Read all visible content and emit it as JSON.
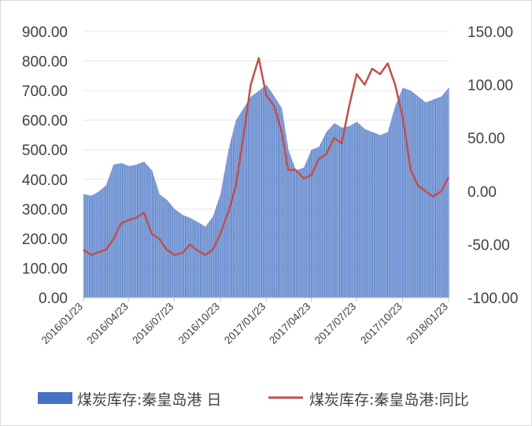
{
  "chart_data": {
    "type": "bar+line",
    "title": "",
    "x_ticks": [
      "2016/01/23",
      "2016/04/23",
      "2016/07/23",
      "2016/10/23",
      "2017/01/23",
      "2017/04/23",
      "2017/07/23",
      "2017/10/23",
      "2018/01/23"
    ],
    "y_left": {
      "ylim": [
        0,
        900
      ],
      "ticks": [
        "0.00",
        "100.00",
        "200.00",
        "300.00",
        "400.00",
        "500.00",
        "600.00",
        "700.00",
        "800.00",
        "900.00"
      ]
    },
    "y_right": {
      "ylim": [
        -100,
        150
      ],
      "ticks": [
        "-100.00",
        "-50.00",
        "0.00",
        "50.00",
        "100.00",
        "150.00"
      ]
    },
    "series": [
      {
        "name": "煤炭库存:秦皇岛港 日",
        "kind": "bar",
        "axis": "left",
        "color": "#4472c4",
        "points": [
          [
            "2016/01/23",
            350
          ],
          [
            "2016/02/08",
            345
          ],
          [
            "2016/02/23",
            360
          ],
          [
            "2016/03/08",
            380
          ],
          [
            "2016/03/23",
            450
          ],
          [
            "2016/04/08",
            455
          ],
          [
            "2016/04/23",
            445
          ],
          [
            "2016/05/08",
            450
          ],
          [
            "2016/05/23",
            460
          ],
          [
            "2016/06/08",
            430
          ],
          [
            "2016/06/23",
            350
          ],
          [
            "2016/07/08",
            330
          ],
          [
            "2016/07/23",
            300
          ],
          [
            "2016/08/08",
            280
          ],
          [
            "2016/08/23",
            270
          ],
          [
            "2016/09/08",
            255
          ],
          [
            "2016/09/23",
            240
          ],
          [
            "2016/10/08",
            275
          ],
          [
            "2016/10/23",
            350
          ],
          [
            "2016/11/08",
            500
          ],
          [
            "2016/11/23",
            600
          ],
          [
            "2016/12/08",
            640
          ],
          [
            "2016/12/23",
            680
          ],
          [
            "2017/01/08",
            700
          ],
          [
            "2017/01/23",
            720
          ],
          [
            "2017/02/08",
            680
          ],
          [
            "2017/02/23",
            640
          ],
          [
            "2017/03/08",
            500
          ],
          [
            "2017/03/23",
            430
          ],
          [
            "2017/04/08",
            440
          ],
          [
            "2017/04/23",
            500
          ],
          [
            "2017/05/08",
            510
          ],
          [
            "2017/05/23",
            560
          ],
          [
            "2017/06/08",
            590
          ],
          [
            "2017/06/23",
            575
          ],
          [
            "2017/07/08",
            580
          ],
          [
            "2017/07/23",
            595
          ],
          [
            "2017/08/08",
            570
          ],
          [
            "2017/08/23",
            560
          ],
          [
            "2017/09/08",
            550
          ],
          [
            "2017/09/23",
            560
          ],
          [
            "2017/10/08",
            650
          ],
          [
            "2017/10/23",
            710
          ],
          [
            "2017/11/08",
            700
          ],
          [
            "2017/11/23",
            680
          ],
          [
            "2017/12/08",
            660
          ],
          [
            "2017/12/23",
            670
          ],
          [
            "2018/01/08",
            680
          ],
          [
            "2018/01/23",
            710
          ]
        ]
      },
      {
        "name": "煤炭库存:秦皇岛港:同比",
        "kind": "line",
        "axis": "right",
        "color": "#c0504d",
        "points": [
          [
            "2016/01/23",
            -55
          ],
          [
            "2016/02/08",
            -60
          ],
          [
            "2016/02/23",
            -57
          ],
          [
            "2016/03/08",
            -55
          ],
          [
            "2016/03/23",
            -45
          ],
          [
            "2016/04/08",
            -30
          ],
          [
            "2016/04/23",
            -27
          ],
          [
            "2016/05/08",
            -25
          ],
          [
            "2016/05/23",
            -20
          ],
          [
            "2016/06/08",
            -40
          ],
          [
            "2016/06/23",
            -45
          ],
          [
            "2016/07/08",
            -55
          ],
          [
            "2016/07/23",
            -60
          ],
          [
            "2016/08/08",
            -58
          ],
          [
            "2016/08/23",
            -50
          ],
          [
            "2016/09/08",
            -56
          ],
          [
            "2016/09/23",
            -60
          ],
          [
            "2016/10/08",
            -55
          ],
          [
            "2016/10/23",
            -40
          ],
          [
            "2016/11/08",
            -20
          ],
          [
            "2016/11/23",
            5
          ],
          [
            "2016/12/08",
            50
          ],
          [
            "2016/12/23",
            100
          ],
          [
            "2017/01/08",
            125
          ],
          [
            "2017/01/23",
            90
          ],
          [
            "2017/02/08",
            80
          ],
          [
            "2017/02/23",
            55
          ],
          [
            "2017/03/08",
            20
          ],
          [
            "2017/03/23",
            20
          ],
          [
            "2017/04/08",
            12
          ],
          [
            "2017/04/23",
            15
          ],
          [
            "2017/05/08",
            30
          ],
          [
            "2017/05/23",
            35
          ],
          [
            "2017/06/08",
            50
          ],
          [
            "2017/06/23",
            45
          ],
          [
            "2017/07/08",
            80
          ],
          [
            "2017/07/23",
            110
          ],
          [
            "2017/08/08",
            100
          ],
          [
            "2017/08/23",
            115
          ],
          [
            "2017/09/08",
            110
          ],
          [
            "2017/09/23",
            120
          ],
          [
            "2017/10/08",
            100
          ],
          [
            "2017/10/23",
            70
          ],
          [
            "2017/11/08",
            20
          ],
          [
            "2017/11/23",
            5
          ],
          [
            "2017/12/08",
            0
          ],
          [
            "2017/12/23",
            -5
          ],
          [
            "2018/01/08",
            0
          ],
          [
            "2018/01/23",
            13
          ]
        ]
      }
    ]
  }
}
